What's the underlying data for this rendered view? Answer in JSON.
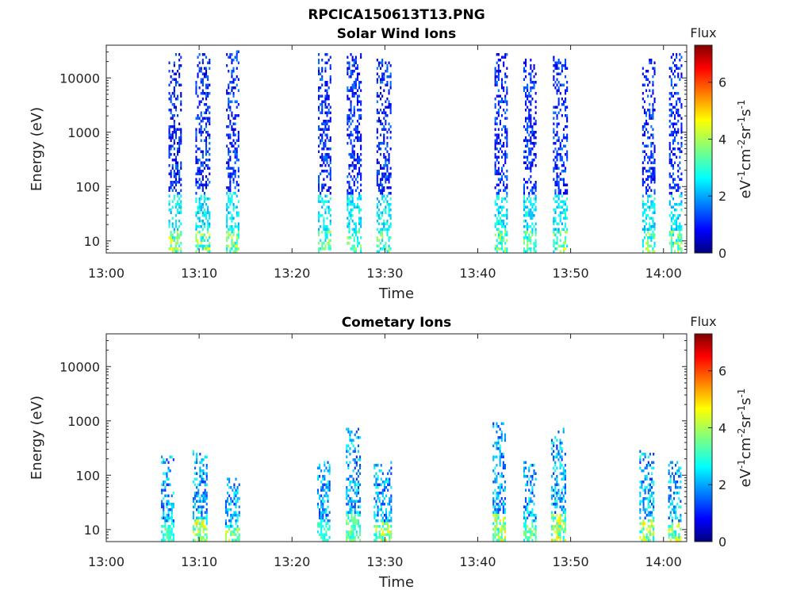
{
  "figure_title": "RPCICA150613T13.PNG",
  "chart_data": [
    {
      "type": "heatmap",
      "title": "Solar Wind Ions",
      "xlabel": "Time",
      "ylabel": "Energy (eV)",
      "x_ticks": [
        "13:00",
        "13:10",
        "13:20",
        "13:30",
        "13:40",
        "13:50",
        "14:00"
      ],
      "xlim_minutes": [
        0,
        62.5
      ],
      "y_scale": "log",
      "y_ticks": [
        "10",
        "100",
        "1000",
        "10000"
      ],
      "ylim": [
        6,
        40000
      ],
      "colorbar": {
        "title": "Flux",
        "label": "eV-1cm-2sr-1s-1",
        "ticks": [
          "0",
          "2",
          "4",
          "6"
        ],
        "range": [
          0,
          7.3
        ],
        "colormap": "jet"
      },
      "bursts": [
        {
          "t": 6.7,
          "w": 1.3,
          "emax": 30000,
          "peak": 4.8
        },
        {
          "t": 9.6,
          "w": 1.5,
          "emax": 30000,
          "peak": 4.6
        },
        {
          "t": 12.9,
          "w": 1.4,
          "emax": 35000,
          "peak": 4.4
        },
        {
          "t": 22.8,
          "w": 1.4,
          "emax": 30000,
          "peak": 4.2
        },
        {
          "t": 25.9,
          "w": 1.5,
          "emax": 32000,
          "peak": 4.0
        },
        {
          "t": 29.1,
          "w": 1.5,
          "emax": 25000,
          "peak": 4.0
        },
        {
          "t": 41.8,
          "w": 1.4,
          "emax": 30000,
          "peak": 4.2
        },
        {
          "t": 44.9,
          "w": 1.4,
          "emax": 25000,
          "peak": 4.0
        },
        {
          "t": 48.1,
          "w": 1.5,
          "emax": 28000,
          "peak": 4.6
        },
        {
          "t": 57.7,
          "w": 1.4,
          "emax": 25000,
          "peak": 4.4
        },
        {
          "t": 60.6,
          "w": 1.4,
          "emax": 30000,
          "peak": 4.4
        }
      ]
    },
    {
      "type": "heatmap",
      "title": "Cometary Ions",
      "xlabel": "Time",
      "ylabel": "Energy (eV)",
      "x_ticks": [
        "13:00",
        "13:10",
        "13:20",
        "13:30",
        "13:40",
        "13:50",
        "14:00"
      ],
      "xlim_minutes": [
        0,
        62.5
      ],
      "y_scale": "log",
      "y_ticks": [
        "10",
        "100",
        "1000",
        "10000"
      ],
      "ylim": [
        6,
        40000
      ],
      "colorbar": {
        "title": "Flux",
        "label": "eV-1cm-2sr-1s-1",
        "ticks": [
          "0",
          "2",
          "4",
          "6"
        ],
        "range": [
          0,
          7.3
        ],
        "colormap": "jet"
      },
      "bursts": [
        {
          "t": 5.9,
          "w": 1.4,
          "emax": 250,
          "peak": 3.6
        },
        {
          "t": 9.3,
          "w": 1.6,
          "emax": 300,
          "peak": 5.0
        },
        {
          "t": 12.8,
          "w": 1.5,
          "emax": 100,
          "peak": 4.6
        },
        {
          "t": 22.7,
          "w": 1.4,
          "emax": 200,
          "peak": 3.5
        },
        {
          "t": 25.8,
          "w": 1.6,
          "emax": 800,
          "peak": 4.0
        },
        {
          "t": 28.8,
          "w": 1.8,
          "emax": 200,
          "peak": 4.8
        },
        {
          "t": 41.6,
          "w": 1.3,
          "emax": 1000,
          "peak": 4.8
        },
        {
          "t": 44.9,
          "w": 1.4,
          "emax": 200,
          "peak": 4.0
        },
        {
          "t": 47.9,
          "w": 1.6,
          "emax": 800,
          "peak": 5.0
        },
        {
          "t": 57.4,
          "w": 1.5,
          "emax": 300,
          "peak": 4.8
        },
        {
          "t": 60.5,
          "w": 1.4,
          "emax": 200,
          "peak": 4.8
        }
      ]
    }
  ]
}
